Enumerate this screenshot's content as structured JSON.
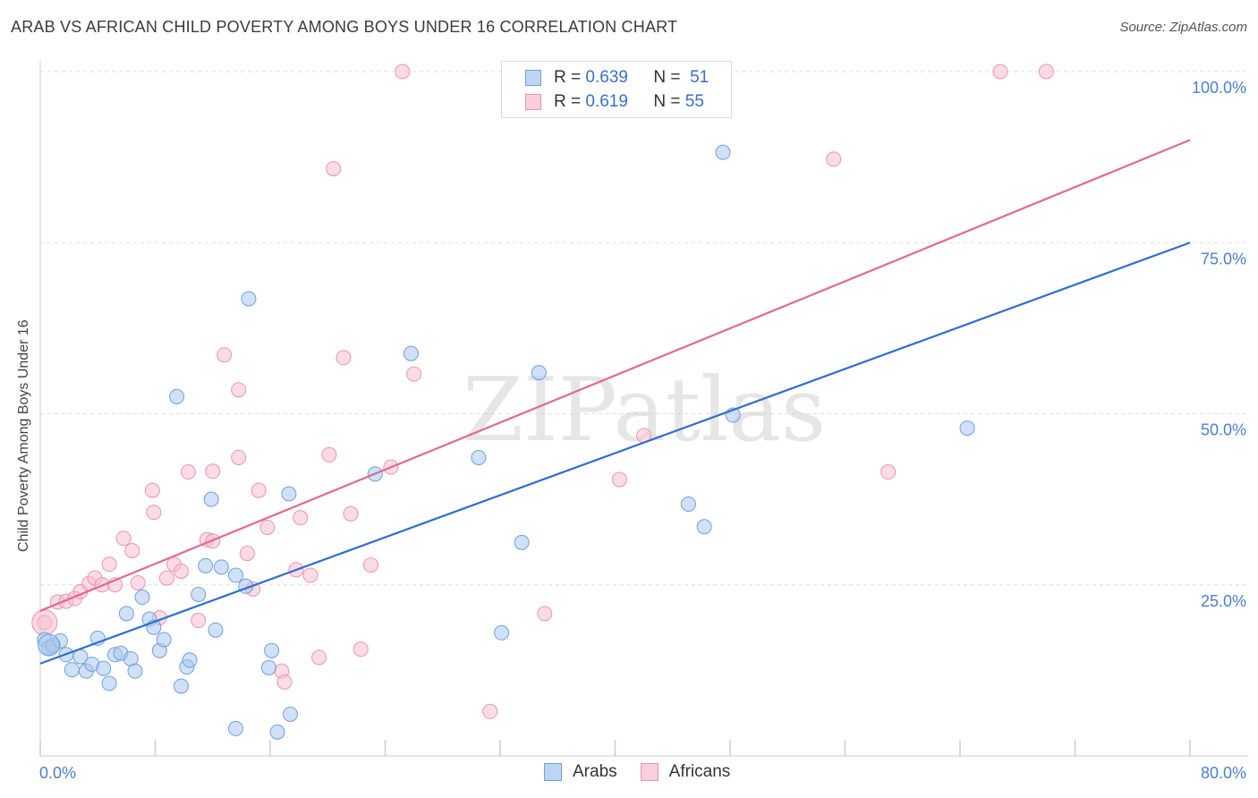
{
  "title": "ARAB VS AFRICAN CHILD POVERTY AMONG BOYS UNDER 16 CORRELATION CHART",
  "source": "Source: ZipAtlas.com",
  "watermark": "ZIPatlas",
  "legend": {
    "arabs": {
      "r_label": "R =",
      "r_value": "0.639",
      "n_label": "N =",
      "n_value": "51"
    },
    "africans": {
      "r_label": "R =",
      "r_value": "0.619",
      "n_label": "N =",
      "n_value": "55"
    }
  },
  "bottom_legend": {
    "arabs": "Arabs",
    "africans": "Africans"
  },
  "colors": {
    "arabs_fill": "#a9c9f0",
    "arabs_stroke": "#6f9fdc",
    "arabs_line": "#2f6fcf",
    "africans_fill": "#f7bfd0",
    "africans_stroke": "#ec93b0",
    "africans_line": "#e0698f",
    "grid": "#dddddd",
    "tick_text": "#4a7fd0"
  },
  "chart_data": {
    "type": "scatter",
    "title": "ARAB VS AFRICAN CHILD POVERTY AMONG BOYS UNDER 16 CORRELATION CHART",
    "xlabel": "",
    "ylabel": "Child Poverty Among Boys Under 16",
    "xlim": [
      0,
      80
    ],
    "ylim": [
      0,
      100
    ],
    "x_tick_labels": [
      "0.0%",
      "80.0%"
    ],
    "y_tick_labels": [
      "25.0%",
      "50.0%",
      "75.0%",
      "100.0%"
    ],
    "y_ticks": [
      25,
      50,
      75,
      100
    ],
    "grid": "dashed horizontal",
    "legend_position": "top-center",
    "series": [
      {
        "name": "Arabs",
        "r": 0.639,
        "n": 51,
        "trend": {
          "x": [
            0,
            80
          ],
          "y": [
            13.5,
            75.0
          ]
        },
        "points": [
          [
            0.3,
            17.0
          ],
          [
            0.6,
            15.8
          ],
          [
            0.9,
            16.2
          ],
          [
            1.4,
            16.8
          ],
          [
            1.8,
            14.8
          ],
          [
            2.2,
            12.6
          ],
          [
            2.8,
            14.5
          ],
          [
            3.2,
            12.4
          ],
          [
            3.6,
            13.4
          ],
          [
            4.0,
            17.2
          ],
          [
            4.4,
            12.8
          ],
          [
            4.8,
            10.6
          ],
          [
            5.2,
            14.8
          ],
          [
            5.6,
            15.0
          ],
          [
            6.0,
            20.8
          ],
          [
            6.3,
            14.2
          ],
          [
            6.6,
            12.4
          ],
          [
            7.1,
            23.2
          ],
          [
            7.6,
            20.0
          ],
          [
            7.9,
            18.8
          ],
          [
            8.3,
            15.4
          ],
          [
            8.6,
            17.0
          ],
          [
            9.5,
            52.5
          ],
          [
            9.8,
            10.2
          ],
          [
            10.2,
            13.0
          ],
          [
            10.4,
            14.0
          ],
          [
            11.0,
            23.6
          ],
          [
            11.5,
            27.8
          ],
          [
            11.9,
            37.5
          ],
          [
            12.2,
            18.4
          ],
          [
            12.6,
            27.6
          ],
          [
            13.6,
            4.0
          ],
          [
            13.6,
            26.4
          ],
          [
            14.3,
            24.8
          ],
          [
            14.5,
            66.8
          ],
          [
            15.9,
            12.9
          ],
          [
            16.1,
            15.4
          ],
          [
            16.5,
            3.5
          ],
          [
            17.3,
            38.3
          ],
          [
            17.4,
            6.1
          ],
          [
            23.3,
            41.2
          ],
          [
            25.8,
            58.8
          ],
          [
            30.5,
            43.6
          ],
          [
            32.1,
            18.0
          ],
          [
            33.5,
            31.2
          ],
          [
            34.7,
            56.0
          ],
          [
            45.1,
            36.8
          ],
          [
            46.2,
            33.5
          ],
          [
            47.5,
            88.2
          ],
          [
            48.2,
            49.8
          ],
          [
            64.5,
            47.9
          ]
        ]
      },
      {
        "name": "Africans",
        "r": 0.619,
        "n": 55,
        "trend": {
          "x": [
            0,
            80
          ],
          "y": [
            21.2,
            90.0
          ]
        },
        "points": [
          [
            0.3,
            19.5
          ],
          [
            0.8,
            16.0
          ],
          [
            1.2,
            22.5
          ],
          [
            1.8,
            22.6
          ],
          [
            2.4,
            23.0
          ],
          [
            2.8,
            24.0
          ],
          [
            3.4,
            25.2
          ],
          [
            3.8,
            26.0
          ],
          [
            4.3,
            25.0
          ],
          [
            4.8,
            28.0
          ],
          [
            5.2,
            25.0
          ],
          [
            5.8,
            31.8
          ],
          [
            6.4,
            30.0
          ],
          [
            6.8,
            25.3
          ],
          [
            7.8,
            38.8
          ],
          [
            7.9,
            35.6
          ],
          [
            8.3,
            20.2
          ],
          [
            8.8,
            26.0
          ],
          [
            9.3,
            28.0
          ],
          [
            9.8,
            27.0
          ],
          [
            10.3,
            41.5
          ],
          [
            11.0,
            19.8
          ],
          [
            11.6,
            31.6
          ],
          [
            12.0,
            31.4
          ],
          [
            12.0,
            41.6
          ],
          [
            12.8,
            58.6
          ],
          [
            13.8,
            43.6
          ],
          [
            13.8,
            53.5
          ],
          [
            14.4,
            29.6
          ],
          [
            14.8,
            24.4
          ],
          [
            15.2,
            38.8
          ],
          [
            15.8,
            33.4
          ],
          [
            16.8,
            12.4
          ],
          [
            17.0,
            10.8
          ],
          [
            17.8,
            27.2
          ],
          [
            18.1,
            34.8
          ],
          [
            18.8,
            26.4
          ],
          [
            19.4,
            14.4
          ],
          [
            20.1,
            44.0
          ],
          [
            20.4,
            85.8
          ],
          [
            21.1,
            58.2
          ],
          [
            21.6,
            35.4
          ],
          [
            22.3,
            15.6
          ],
          [
            23.0,
            27.9
          ],
          [
            24.4,
            42.2
          ],
          [
            25.2,
            100.0
          ],
          [
            26.0,
            55.8
          ],
          [
            31.3,
            6.5
          ],
          [
            35.1,
            20.8
          ],
          [
            40.3,
            40.4
          ],
          [
            42.0,
            46.8
          ],
          [
            55.2,
            87.2
          ],
          [
            59.0,
            41.5
          ],
          [
            66.8,
            100.0
          ],
          [
            70.0,
            100.0
          ]
        ]
      }
    ]
  }
}
